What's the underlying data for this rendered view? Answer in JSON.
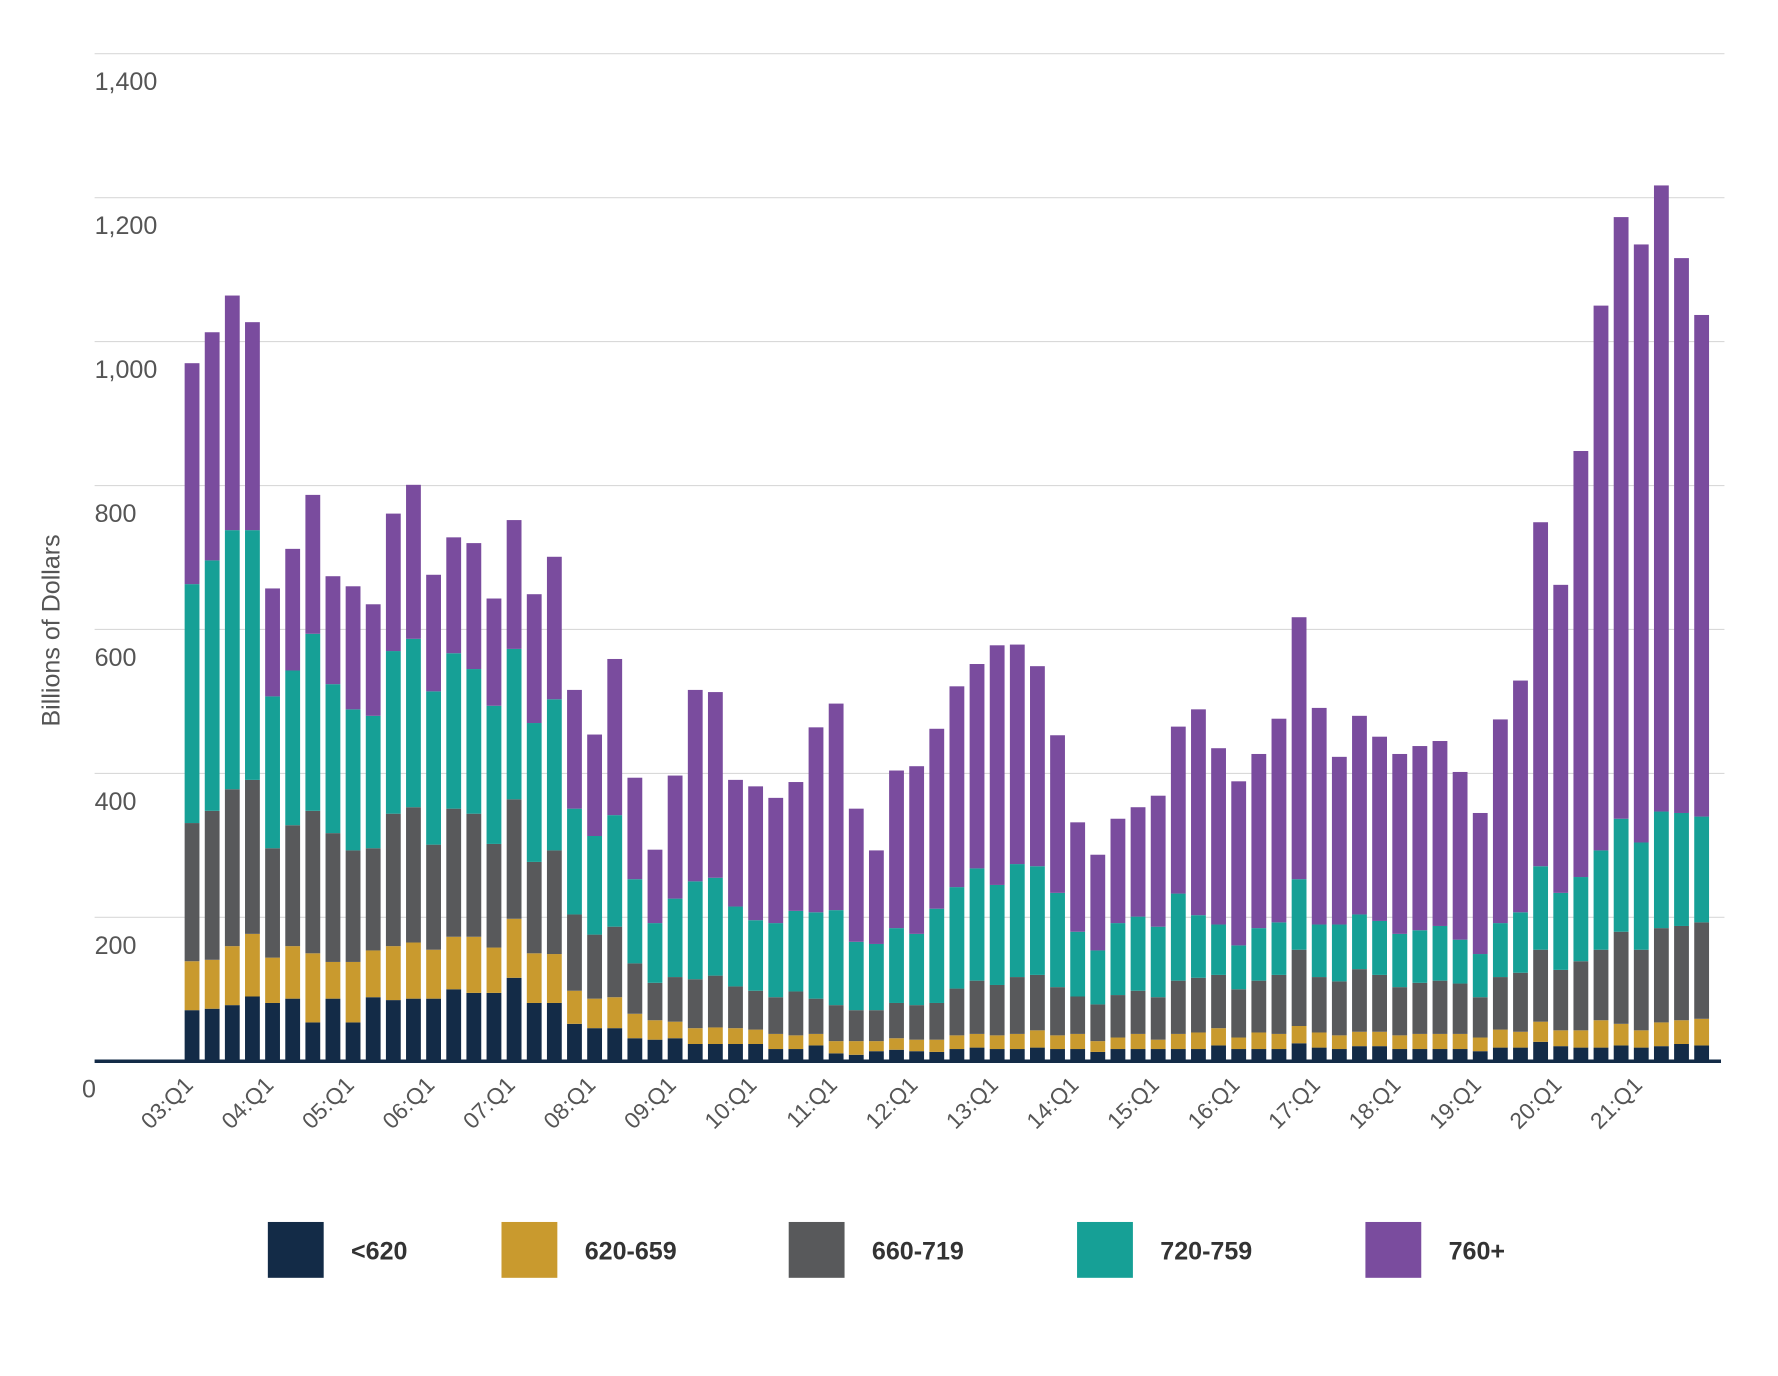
{
  "chart_data": {
    "type": "stacked-bar",
    "ylabel": "Billions of Dollars",
    "categories": [
      "03:Q1",
      null,
      null,
      null,
      "04:Q1",
      null,
      null,
      null,
      "05:Q1",
      null,
      null,
      null,
      "06:Q1",
      null,
      null,
      null,
      "07:Q1",
      null,
      null,
      null,
      "08:Q1",
      null,
      null,
      null,
      "09:Q1",
      null,
      null,
      null,
      "10:Q1",
      null,
      null,
      null,
      "11:Q1",
      null,
      null,
      null,
      "12:Q1",
      null,
      null,
      null,
      "13:Q1",
      null,
      null,
      null,
      "14:Q1",
      null,
      null,
      null,
      "15:Q1",
      null,
      null,
      null,
      "16:Q1",
      null,
      null,
      null,
      "17:Q1",
      null,
      null,
      null,
      "18:Q1",
      null,
      null,
      null,
      "19:Q1",
      null,
      null,
      null,
      "20:Q1",
      null,
      null,
      null,
      "21:Q1",
      null,
      null,
      null
    ],
    "series": [
      {
        "name": "<620",
        "color": "#132b47",
        "values": [
          71,
          73,
          78,
          90,
          81,
          87,
          54,
          87,
          54,
          89,
          85,
          87,
          87,
          100,
          95,
          95,
          116,
          81,
          81,
          52,
          46,
          46,
          32,
          30,
          32,
          24,
          24,
          24,
          24,
          17,
          17,
          22,
          11,
          9,
          14,
          16,
          14,
          13,
          17,
          19,
          17,
          17,
          19,
          17,
          17,
          13,
          17,
          17,
          17,
          17,
          17,
          22,
          17,
          17,
          17,
          25,
          19,
          17,
          21,
          21,
          17,
          17,
          17,
          17,
          14,
          19,
          19,
          27,
          21,
          19,
          19,
          22,
          19,
          21,
          24,
          22
        ]
      },
      {
        "name": "620-659",
        "color": "#c99a2e",
        "values": [
          68,
          68,
          82,
          87,
          63,
          73,
          96,
          51,
          84,
          65,
          75,
          78,
          68,
          73,
          78,
          63,
          82,
          69,
          68,
          46,
          41,
          43,
          34,
          27,
          23,
          22,
          23,
          22,
          20,
          21,
          19,
          16,
          17,
          19,
          14,
          16,
          16,
          17,
          19,
          19,
          19,
          21,
          24,
          19,
          21,
          15,
          16,
          21,
          13,
          21,
          23,
          24,
          16,
          23,
          21,
          24,
          21,
          19,
          20,
          20,
          19,
          21,
          21,
          21,
          19,
          25,
          22,
          28,
          22,
          24,
          38,
          30,
          24,
          33,
          33,
          37
        ]
      },
      {
        "name": "660-719",
        "color": "#58595b",
        "values": [
          192,
          207,
          218,
          214,
          152,
          168,
          198,
          179,
          155,
          142,
          184,
          188,
          146,
          178,
          171,
          144,
          166,
          127,
          144,
          106,
          89,
          98,
          70,
          52,
          62,
          68,
          72,
          58,
          54,
          51,
          61,
          49,
          50,
          43,
          43,
          49,
          48,
          51,
          65,
          74,
          70,
          79,
          77,
          67,
          52,
          51,
          59,
          60,
          59,
          74,
          76,
          74,
          67,
          72,
          82,
          106,
          77,
          75,
          87,
          79,
          67,
          71,
          74,
          70,
          56,
          73,
          82,
          100,
          84,
          96,
          98,
          128,
          112,
          131,
          131,
          134
        ]
      },
      {
        "name": "720-759",
        "color": "#16a096",
        "values": [
          332,
          348,
          360,
          347,
          211,
          215,
          246,
          207,
          196,
          184,
          226,
          234,
          213,
          216,
          201,
          192,
          209,
          193,
          210,
          147,
          137,
          155,
          117,
          83,
          109,
          136,
          136,
          111,
          98,
          103,
          112,
          120,
          132,
          95,
          92,
          104,
          99,
          131,
          141,
          156,
          139,
          157,
          151,
          131,
          90,
          75,
          100,
          103,
          98,
          121,
          87,
          70,
          61,
          73,
          73,
          98,
          73,
          79,
          76,
          75,
          74,
          73,
          76,
          61,
          60,
          75,
          84,
          116,
          107,
          117,
          138,
          157,
          149,
          162,
          157,
          147
        ]
      },
      {
        "name": "760+",
        "color": "#7a4c9e",
        "values": [
          307,
          317,
          326,
          289,
          150,
          169,
          193,
          150,
          171,
          155,
          191,
          214,
          162,
          161,
          175,
          149,
          179,
          179,
          198,
          165,
          141,
          217,
          141,
          102,
          171,
          266,
          258,
          176,
          186,
          174,
          179,
          257,
          287,
          185,
          130,
          219,
          233,
          250,
          279,
          284,
          333,
          305,
          278,
          219,
          152,
          133,
          145,
          152,
          182,
          232,
          286,
          245,
          228,
          242,
          283,
          364,
          301,
          233,
          276,
          256,
          250,
          256,
          257,
          233,
          196,
          283,
          322,
          478,
          428,
          592,
          757,
          836,
          831,
          870,
          771,
          697
        ]
      }
    ],
    "ylim": [
      0,
      1400
    ],
    "yticks": [
      0,
      200,
      400,
      600,
      800,
      {
        "value": 1000,
        "label": "1,000"
      },
      {
        "value": 1200,
        "label": "1,200"
      },
      {
        "value": 1400,
        "label": "1,400"
      }
    ],
    "grid": true,
    "legend": "bottom"
  }
}
